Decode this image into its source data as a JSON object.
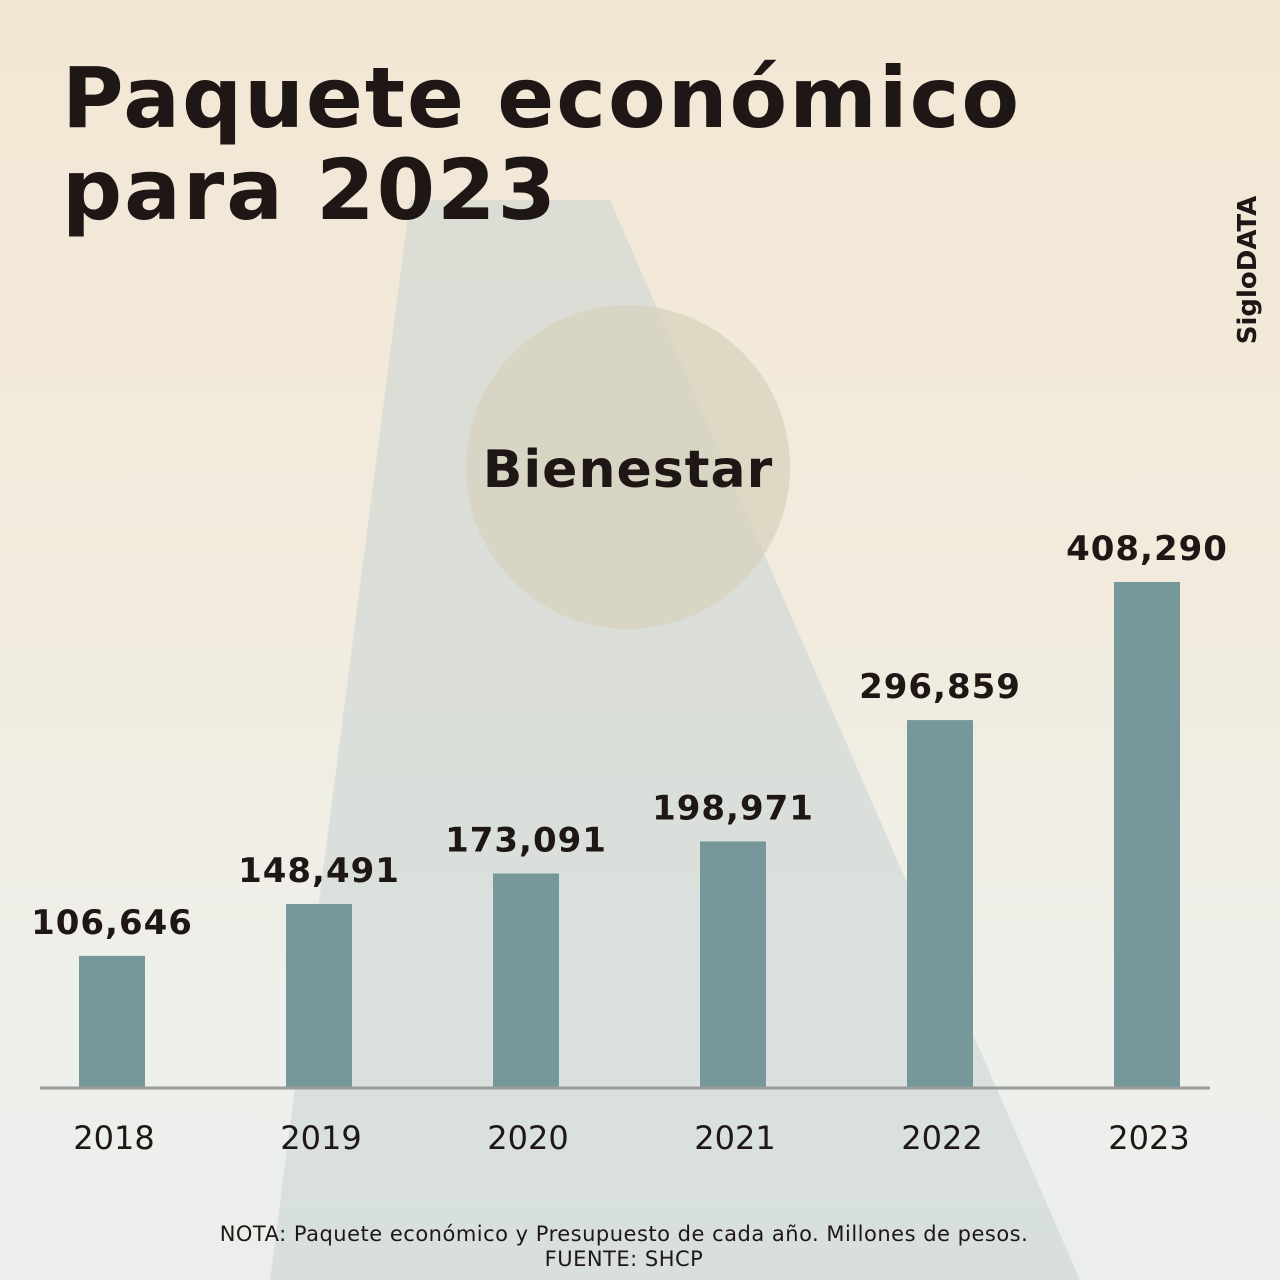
{
  "title_line1": "Paquete económico",
  "title_line2": "para 2023",
  "brand": "SigloDATA",
  "chart_data": {
    "type": "bar",
    "title": "Paquete económico para 2023",
    "subtitle": "Bienestar",
    "categories": [
      "2018",
      "2019",
      "2020",
      "2021",
      "2022",
      "2023"
    ],
    "values": [
      106646,
      148491,
      173091,
      198971,
      296859,
      408290
    ],
    "labels": [
      "106,646",
      "148,491",
      "173,091",
      "198,971",
      "296,859",
      "408,290"
    ],
    "xlabel": "",
    "ylabel": "Millones de pesos",
    "ylim": [
      0,
      408290
    ],
    "grid": false,
    "bar_color": "#77989a"
  },
  "note": "NOTA: Paquete económico y Presupuesto de cada año. Millones de pesos.",
  "source": "FUENTE: SHCP"
}
